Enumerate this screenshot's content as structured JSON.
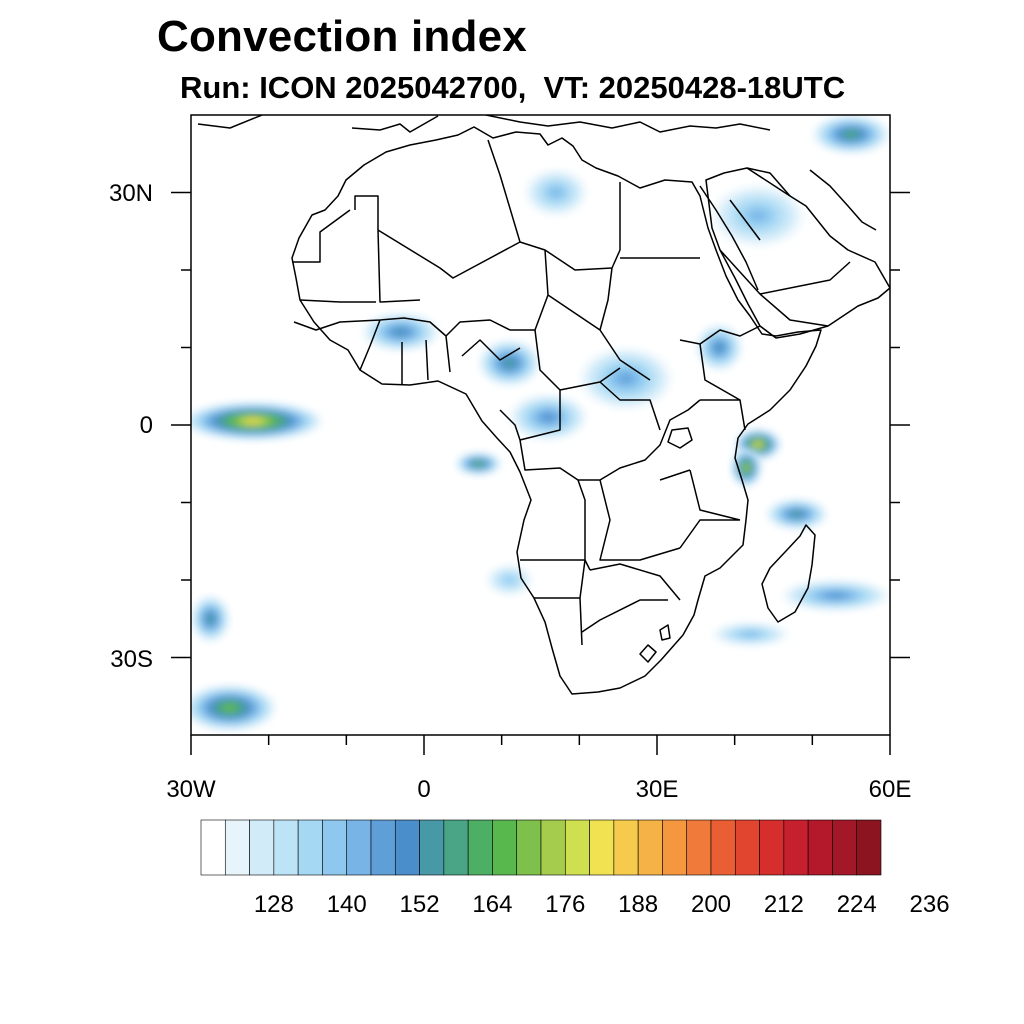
{
  "title": "Convection index",
  "subtitle": "Run: ICON 2025042700,  VT: 20250428-18UTC",
  "lat_labels": [
    "30N",
    "0",
    "30S"
  ],
  "lon_labels": [
    "30W",
    "0",
    "30E",
    "60E"
  ],
  "map_extent": {
    "lon_min": -30,
    "lon_max": 60,
    "lat_min": -40,
    "lat_max": 40
  },
  "colorbar": {
    "colors": [
      "#ffffff",
      "#e8f4fc",
      "#d1ebf9",
      "#bde3f7",
      "#a5d8f3",
      "#8fc8ee",
      "#78b5e6",
      "#5f9fd8",
      "#4a8fcb",
      "#4899a8",
      "#49a585",
      "#4caf63",
      "#58b84e",
      "#7dc04c",
      "#a6cc4d",
      "#cedf4f",
      "#f0e250",
      "#f6cb4d",
      "#f5b246",
      "#f4973f",
      "#f07a3a",
      "#ea5e34",
      "#e14530",
      "#d62d2d",
      "#c61f2d",
      "#b4182b",
      "#a31828",
      "#8c1421"
    ],
    "tick_labels": [
      "128",
      "140",
      "152",
      "164",
      "176",
      "188",
      "200",
      "212",
      "224",
      "236"
    ]
  },
  "chart_data": {
    "type": "heatmap",
    "title": "Convection index",
    "subtitle": "Run: ICON 2025042700,  VT: 20250428-18UTC",
    "region": "Africa",
    "x_ticks": [
      "30W",
      "0",
      "30E",
      "60E"
    ],
    "y_ticks": [
      "30N",
      "0",
      "30S"
    ],
    "colorbar_ticks": [
      128,
      140,
      152,
      164,
      176,
      188,
      200,
      212,
      224,
      236
    ],
    "blobs": [
      {
        "lon": -22,
        "lat": 0.5,
        "rx": 9,
        "ry": 2.5,
        "peak": 208
      },
      {
        "lon": -25,
        "lat": -36.5,
        "rx": 6,
        "ry": 3,
        "peak": 180
      },
      {
        "lon": -27.5,
        "lat": -25,
        "rx": 2.5,
        "ry": 3,
        "peak": 165
      },
      {
        "lon": 43,
        "lat": -2.5,
        "rx": 3,
        "ry": 2,
        "peak": 204
      },
      {
        "lon": 41.5,
        "lat": -5.5,
        "rx": 2,
        "ry": 2.5,
        "peak": 196
      },
      {
        "lon": 7,
        "lat": -5,
        "rx": 3,
        "ry": 1.5,
        "peak": 175
      },
      {
        "lon": 11,
        "lat": 8,
        "rx": 4,
        "ry": 3,
        "peak": 164
      },
      {
        "lon": 16,
        "lat": 1,
        "rx": 5,
        "ry": 3,
        "peak": 150
      },
      {
        "lon": 26,
        "lat": 6,
        "rx": 6,
        "ry": 4,
        "peak": 145
      },
      {
        "lon": 38,
        "lat": 10,
        "rx": 3,
        "ry": 3,
        "peak": 155
      },
      {
        "lon": -3,
        "lat": 12,
        "rx": 5,
        "ry": 2.5,
        "peak": 160
      },
      {
        "lon": 55,
        "lat": 37.5,
        "rx": 5,
        "ry": 2.5,
        "peak": 170
      },
      {
        "lon": 48,
        "lat": -11.5,
        "rx": 4,
        "ry": 2,
        "peak": 165
      },
      {
        "lon": 53,
        "lat": -22,
        "rx": 7,
        "ry": 2,
        "peak": 150
      },
      {
        "lon": 42,
        "lat": -27,
        "rx": 5,
        "ry": 1.5,
        "peak": 140
      },
      {
        "lon": 17,
        "lat": 30,
        "rx": 4,
        "ry": 3,
        "peak": 140
      },
      {
        "lon": 11,
        "lat": -20,
        "rx": 3,
        "ry": 2,
        "peak": 135
      },
      {
        "lon": 43,
        "lat": 27,
        "rx": 6,
        "ry": 4,
        "peak": 138
      }
    ]
  }
}
